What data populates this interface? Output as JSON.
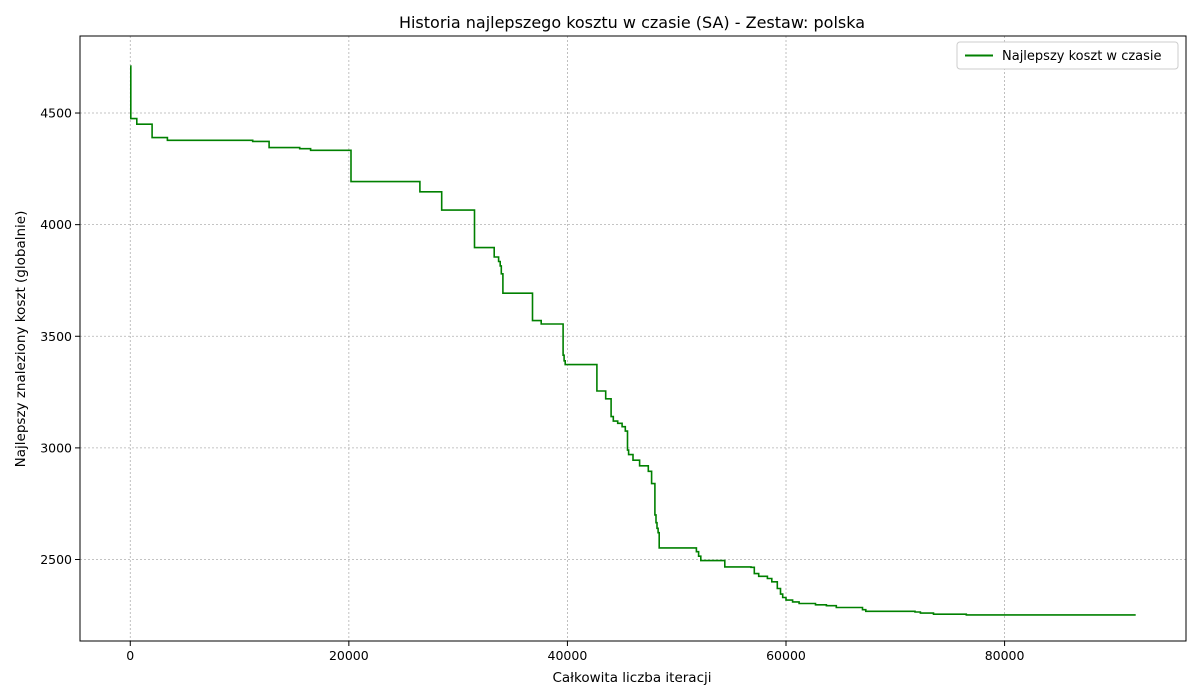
{
  "chart_data": {
    "type": "line",
    "title": "Historia najlepszego kosztu w czasie (SA) - Zestaw: polska",
    "xlabel": "Całkowita liczba iteracji",
    "ylabel": "Najlepszy znaleziony koszt (globalnie)",
    "xlim": [
      -4600,
      96600
    ],
    "ylim": [
      2135,
      4845
    ],
    "xticks": [
      0,
      20000,
      40000,
      60000,
      80000
    ],
    "yticks": [
      2500,
      3000,
      3500,
      4000,
      4500
    ],
    "grid": true,
    "legend_position": "top-right",
    "step": true,
    "colors": {
      "line": "#008000",
      "grid": "#b0b0b0",
      "axis": "#000000"
    },
    "series": [
      {
        "name": "Najlepszy koszt w czasie",
        "x": [
          0,
          50,
          600,
          2000,
          3400,
          11200,
          12700,
          15500,
          16500,
          20200,
          26500,
          28500,
          31500,
          33300,
          33700,
          33850,
          33950,
          34100,
          36800,
          37600,
          39600,
          39700,
          39800,
          42700,
          43500,
          44000,
          44200,
          44600,
          45000,
          45300,
          45500,
          45600,
          46000,
          46600,
          47400,
          47700,
          48000,
          48100,
          48200,
          48300,
          48400,
          51800,
          52000,
          52200,
          54400,
          56800,
          57100,
          57500,
          58300,
          58700,
          59200,
          59500,
          59700,
          60000,
          60600,
          61200,
          62700,
          63700,
          64600,
          67000,
          67300,
          71800,
          72300,
          73500,
          76500,
          92000
        ],
        "y": [
          4710,
          4475,
          4450,
          4390,
          4378,
          4373,
          4345,
          4340,
          4333,
          4193,
          4147,
          4065,
          3897,
          3855,
          3835,
          3815,
          3780,
          3693,
          3570,
          3555,
          3415,
          3390,
          3373,
          3255,
          3220,
          3140,
          3120,
          3110,
          3095,
          3075,
          2990,
          2970,
          2945,
          2920,
          2895,
          2840,
          2700,
          2665,
          2640,
          2620,
          2552,
          2535,
          2515,
          2495,
          2467,
          2465,
          2437,
          2425,
          2415,
          2400,
          2370,
          2345,
          2330,
          2318,
          2310,
          2303,
          2297,
          2293,
          2285,
          2275,
          2268,
          2265,
          2260,
          2255,
          2252,
          2252
        ]
      }
    ]
  }
}
